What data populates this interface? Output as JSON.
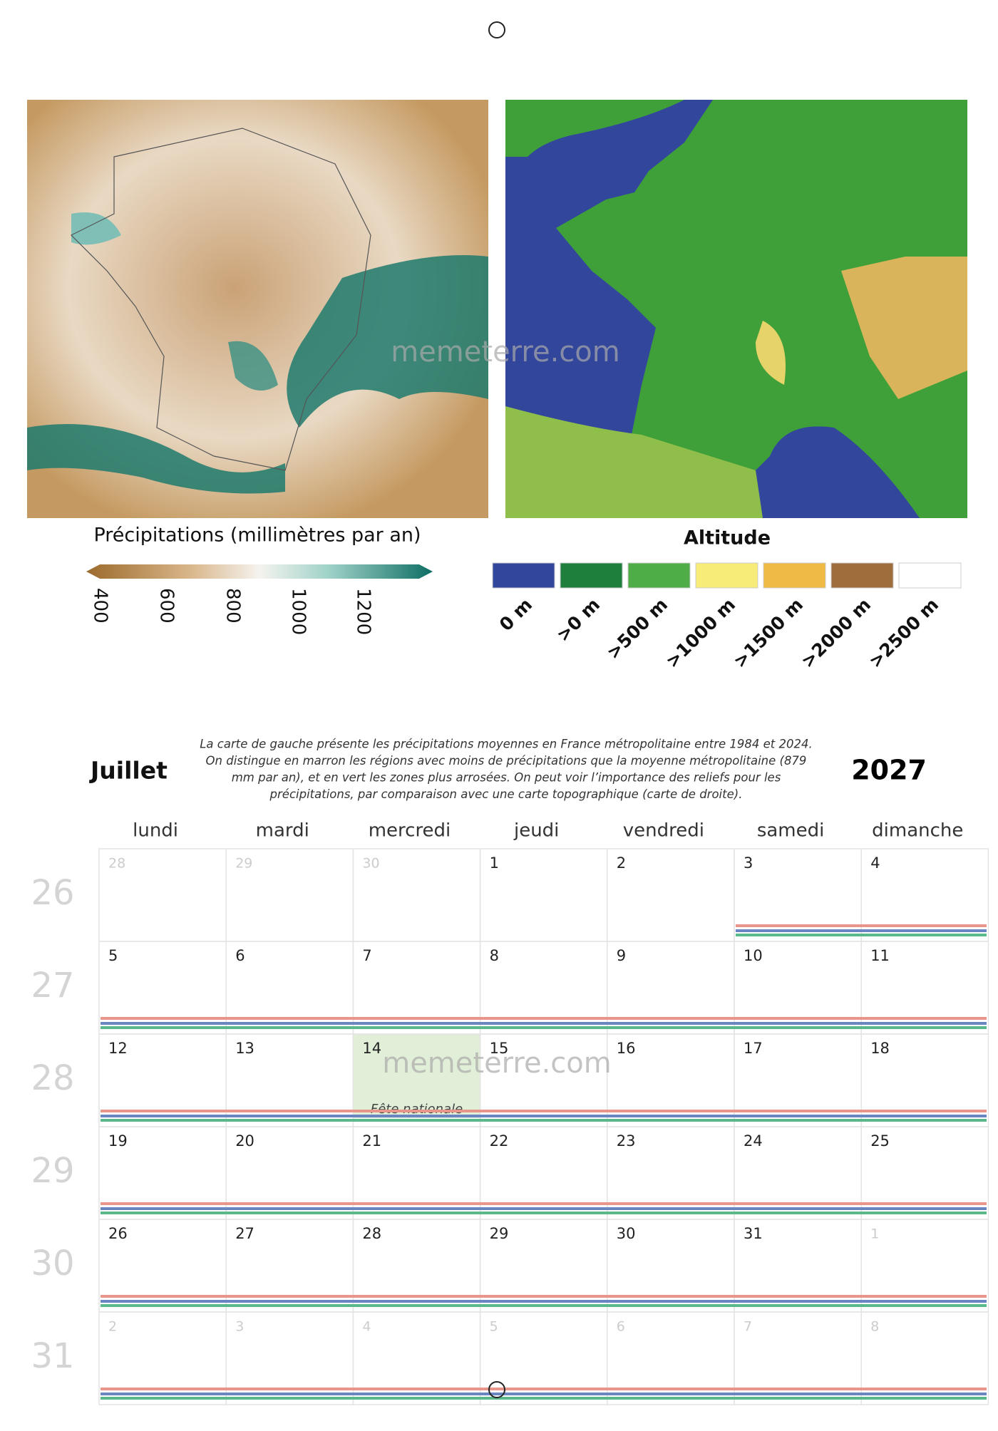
{
  "watermark": "memeterre.com",
  "precipitation_legend": {
    "title": "Précipitations (millimètres par an)",
    "ticks": [
      "400",
      "600",
      "800",
      "1000",
      "1200"
    ]
  },
  "altitude_legend": {
    "title": "Altitude",
    "items": [
      {
        "label": "0 m",
        "color": "#32479b"
      },
      {
        "label": ">0 m",
        "color": "#1e7f3c"
      },
      {
        "label": ">500 m",
        "color": "#4fad48"
      },
      {
        "label": ">1000 m",
        "color": "#f7ec78"
      },
      {
        "label": ">1500 m",
        "color": "#f0bb44"
      },
      {
        "label": ">2000 m",
        "color": "#9e6d3b"
      },
      {
        "label": ">2500 m",
        "color": "#ffffff"
      }
    ]
  },
  "caption": [
    "La carte de gauche présente les précipitations moyennes en France métropolitaine entre 1984 et 2024.",
    "On distingue en marron les régions avec moins de précipitations que la moyenne métropolitaine (879",
    "mm par an), et en vert les zones plus arrosées. On peut voir l’importance des reliefs pour les",
    "précipitations, par comparaison avec une carte topographique (carte de droite)."
  ],
  "month": "Juillet",
  "year": "2027",
  "weekdays": [
    "lundi",
    "mardi",
    "mercredi",
    "jeudi",
    "vendredi",
    "samedi",
    "dimanche"
  ],
  "weeks": [
    {
      "number": "26",
      "days": [
        {
          "day": "28",
          "muted": true
        },
        {
          "day": "29",
          "muted": true
        },
        {
          "day": "30",
          "muted": true
        },
        {
          "day": "1"
        },
        {
          "day": "2"
        },
        {
          "day": "3"
        },
        {
          "day": "4"
        }
      ]
    },
    {
      "number": "27",
      "days": [
        {
          "day": "5"
        },
        {
          "day": "6"
        },
        {
          "day": "7"
        },
        {
          "day": "8"
        },
        {
          "day": "9"
        },
        {
          "day": "10"
        },
        {
          "day": "11"
        }
      ]
    },
    {
      "number": "28",
      "days": [
        {
          "day": "12"
        },
        {
          "day": "13"
        },
        {
          "day": "14",
          "holiday": "Fête nationale"
        },
        {
          "day": "15"
        },
        {
          "day": "16"
        },
        {
          "day": "17"
        },
        {
          "day": "18"
        }
      ]
    },
    {
      "number": "29",
      "days": [
        {
          "day": "19"
        },
        {
          "day": "20"
        },
        {
          "day": "21"
        },
        {
          "day": "22"
        },
        {
          "day": "23"
        },
        {
          "day": "24"
        },
        {
          "day": "25"
        }
      ]
    },
    {
      "number": "30",
      "days": [
        {
          "day": "26"
        },
        {
          "day": "27"
        },
        {
          "day": "28"
        },
        {
          "day": "29"
        },
        {
          "day": "30"
        },
        {
          "day": "31"
        },
        {
          "day": "1",
          "muted": true
        }
      ]
    },
    {
      "number": "31",
      "days": [
        {
          "day": "2",
          "muted": true
        },
        {
          "day": "3",
          "muted": true
        },
        {
          "day": "4",
          "muted": true
        },
        {
          "day": "5",
          "muted": true
        },
        {
          "day": "6",
          "muted": true
        },
        {
          "day": "7",
          "muted": true
        },
        {
          "day": "8",
          "muted": true
        }
      ]
    }
  ]
}
